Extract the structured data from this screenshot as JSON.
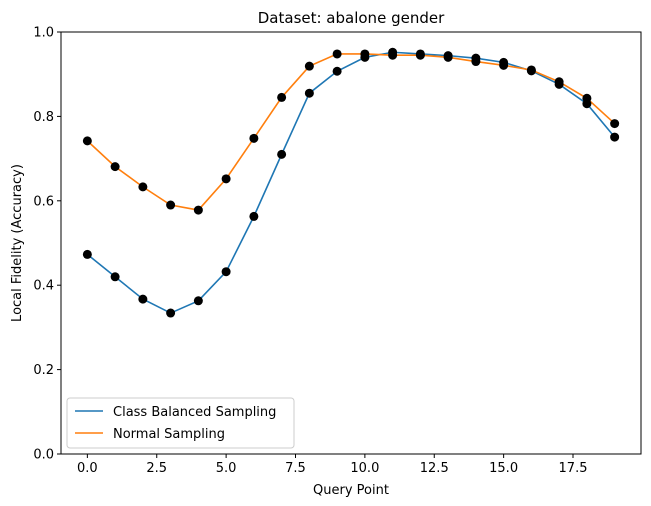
{
  "chart_data": {
    "type": "line",
    "title": "Dataset: abalone gender",
    "xlabel": "Query Point",
    "ylabel": "Local Fidelity (Accuracy)",
    "xlim": [
      -0.95,
      19.95
    ],
    "ylim": [
      0.0,
      1.0
    ],
    "xticks": [
      0.0,
      2.5,
      5.0,
      7.5,
      10.0,
      12.5,
      15.0,
      17.5
    ],
    "xtick_labels": [
      "0.0",
      "2.5",
      "5.0",
      "7.5",
      "10.0",
      "12.5",
      "15.0",
      "17.5"
    ],
    "yticks": [
      0.0,
      0.2,
      0.4,
      0.6,
      0.8,
      1.0
    ],
    "ytick_labels": [
      "0.0",
      "0.2",
      "0.4",
      "0.6",
      "0.8",
      "1.0"
    ],
    "legend_position": "lower-left",
    "grid": false,
    "marker_color": "#000000",
    "x": [
      0,
      1,
      2,
      3,
      4,
      5,
      6,
      7,
      8,
      9,
      10,
      11,
      12,
      13,
      14,
      15,
      16,
      17,
      18,
      19
    ],
    "series": [
      {
        "name": "Class Balanced Sampling",
        "color": "#1f77b4",
        "values": [
          0.473,
          0.42,
          0.367,
          0.334,
          0.363,
          0.432,
          0.563,
          0.71,
          0.855,
          0.907,
          0.94,
          0.952,
          0.948,
          0.944,
          0.938,
          0.928,
          0.908,
          0.876,
          0.83,
          0.751
        ]
      },
      {
        "name": "Normal Sampling",
        "color": "#ff7f0e",
        "values": [
          0.742,
          0.681,
          0.633,
          0.59,
          0.578,
          0.652,
          0.748,
          0.845,
          0.919,
          0.948,
          0.948,
          0.945,
          0.945,
          0.94,
          0.93,
          0.921,
          0.91,
          0.882,
          0.843,
          0.783
        ]
      }
    ]
  }
}
